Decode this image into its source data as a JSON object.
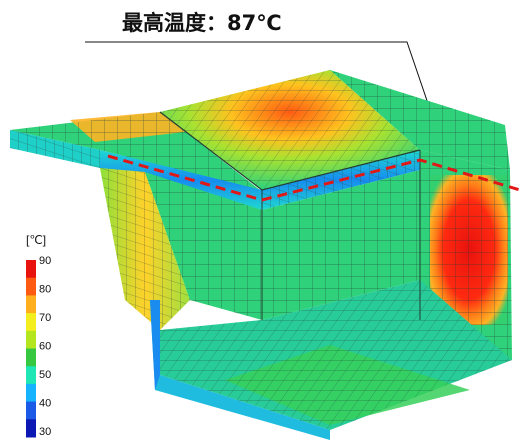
{
  "annotation": {
    "max_temperature_text": "最高温度：87℃"
  },
  "legend": {
    "unit": "[℃]",
    "ticks": [
      "90",
      "80",
      "70",
      "60",
      "50",
      "40",
      "30"
    ],
    "band_colors": [
      "#e8120e",
      "#ff5a12",
      "#ffae1e",
      "#f5ee1e",
      "#b4e620",
      "#36c840",
      "#1ee6b4",
      "#16b4ff",
      "#1a5ae6",
      "#0c18b4"
    ]
  },
  "colors": {
    "mesh_line": "#243d33",
    "hot": "#e8120e",
    "warm": "#ffa020",
    "mid": "#2fd27a",
    "cool": "#1fd0c8",
    "cold": "#1f8cf0",
    "section_line": "#e01818"
  }
}
